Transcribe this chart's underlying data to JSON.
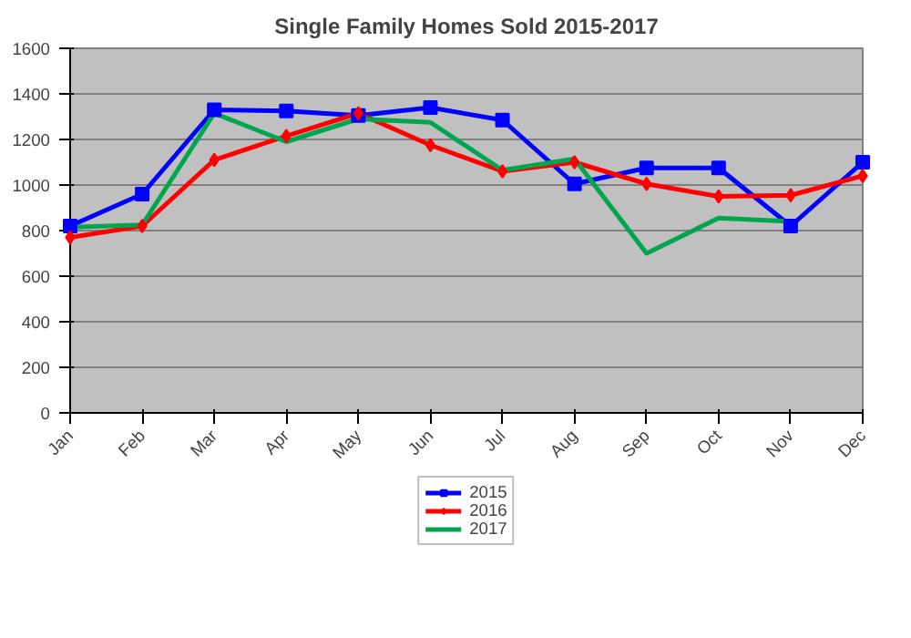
{
  "chart_data": {
    "type": "line",
    "title": "Single Family Homes Sold 2015-2017",
    "categories": [
      "Jan",
      "Feb",
      "Mar",
      "Apr",
      "May",
      "Jun",
      "Jul",
      "Aug",
      "Sep",
      "Oct",
      "Nov",
      "Dec"
    ],
    "series": [
      {
        "name": "2015",
        "color": "#0000ff",
        "marker": "square",
        "values": [
          820,
          960,
          1330,
          1325,
          1305,
          1340,
          1285,
          1005,
          1075,
          1075,
          820,
          1100
        ]
      },
      {
        "name": "2016",
        "color": "#ff0000",
        "marker": "diamond",
        "values": [
          770,
          820,
          1110,
          1215,
          1315,
          1175,
          1060,
          1100,
          1005,
          950,
          955,
          1040
        ]
      },
      {
        "name": "2017",
        "color": "#00a64f",
        "marker": "none",
        "values": [
          815,
          825,
          1315,
          1190,
          1290,
          1275,
          1065,
          1115,
          700,
          855,
          840,
          null
        ]
      }
    ],
    "ylim": [
      0,
      1600
    ],
    "yticks": [
      0,
      200,
      400,
      600,
      800,
      1000,
      1200,
      1400,
      1600
    ],
    "grid": "y",
    "legend": "bottom",
    "line_style": "solid"
  }
}
